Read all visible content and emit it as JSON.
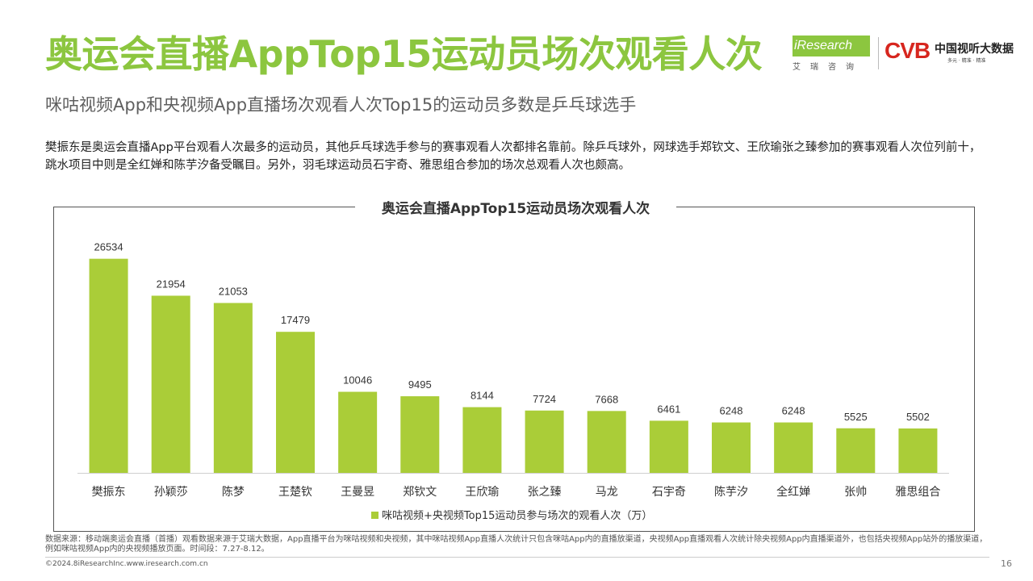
{
  "header": {
    "title": "奥运会直播AppTop15运动员场次观看人次",
    "subtitle": "咪咕视频App和央视频App直播场次观看人次Top15的运动员多数是乒乓球选手",
    "description": "樊振东是奥运会直播App平台观看人次最多的运动员，其他乒乓球选手参与的赛事观看人次都排名靠前。除乒乓球外，网球选手郑钦文、王欣瑜张之臻参加的赛事观看人次位列前十，跳水项目中则是全红婵和陈芋汐备受瞩目。另外，羽毛球运动员石宇奇、雅思组合参加的场次总观看人次也颇高。"
  },
  "logos": {
    "iresearch": "iResearch",
    "iresearch_cn": "艾瑞咨询",
    "cvb": "CVB",
    "cvb_name": "中国视听大数据",
    "cvb_slogan": "多元 · 精准 · 精准"
  },
  "chart_data": {
    "type": "bar",
    "title": "奥运会直播AppTop15运动员场次观看人次",
    "categories": [
      "樊振东",
      "孙颖莎",
      "陈梦",
      "王楚钦",
      "王曼昱",
      "郑钦文",
      "王欣瑜",
      "张之臻",
      "马龙",
      "石宇奇",
      "陈芋汐",
      "全红婵",
      "张帅",
      "雅思组合"
    ],
    "series": [
      {
        "name": "咪咕视频+央视频Top15运动员参与场次的观看人次（万）",
        "values": [
          26534,
          21954,
          21053,
          17479,
          10046,
          9495,
          8144,
          7724,
          7668,
          6461,
          6248,
          6248,
          5525,
          5502
        ]
      }
    ],
    "ylim": [
      0,
      30000
    ],
    "grid": false,
    "legend_position": "bottom",
    "bar_color": "#aacd38"
  },
  "footer": {
    "source": "数据来源：移动端奥运会直播（首播）观看数据来源于艾瑞大数据，App直播平台为咪咕视频和央视频，其中咪咕视频App直播人次统计只包含咪咕App内的直播放渠道，央视频App直播观看人次统计除央视频App内直播渠道外，也包括央视频App站外的播放渠道，例如咪咕视频App内的央视频播放页面。时间段：7.27-8.12。",
    "copyright": "©2024.8iResearchInc.www.iresearch.com.cn",
    "page_number": "16"
  }
}
